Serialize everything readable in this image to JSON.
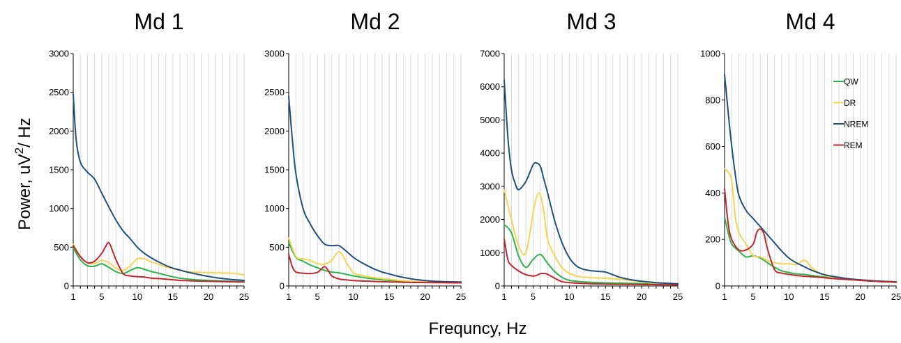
{
  "figure": {
    "ylabel_main": "Power, uV",
    "ylabel_sup": "2",
    "ylabel_tail": "/ Hz",
    "xlabel": "Frequncy, Hz"
  },
  "colors": {
    "QW": "#2db34a",
    "DR": "#f7d354",
    "NREM": "#1f4e80",
    "REM": "#c0262d"
  },
  "chart_data": [
    {
      "type": "line",
      "title": "Md 1",
      "xlim": [
        1,
        25
      ],
      "ylim": [
        0,
        3000
      ],
      "xticks": [
        1,
        5,
        10,
        15,
        20,
        25
      ],
      "yticks": [
        0,
        500,
        1000,
        1500,
        2000,
        2500,
        3000
      ],
      "grid": "vertical",
      "legend": "none",
      "series": [
        {
          "name": "QW",
          "x": [
            1,
            2,
            3,
            4,
            5,
            6,
            7,
            8,
            9,
            10,
            11,
            12,
            13,
            14,
            15,
            16,
            17,
            18,
            19,
            20,
            21,
            22,
            23,
            24,
            25
          ],
          "y": [
            490,
            340,
            260,
            255,
            285,
            240,
            185,
            160,
            200,
            235,
            215,
            185,
            165,
            140,
            118,
            100,
            90,
            82,
            76,
            72,
            68,
            64,
            61,
            58,
            55
          ]
        },
        {
          "name": "DR",
          "x": [
            1,
            2,
            3,
            4,
            5,
            6,
            7,
            8,
            9,
            10,
            11,
            12,
            13,
            14,
            15,
            16,
            17,
            18,
            19,
            20,
            21,
            22,
            23,
            24,
            25
          ],
          "y": [
            540,
            380,
            300,
            290,
            330,
            300,
            230,
            200,
            260,
            350,
            350,
            310,
            280,
            245,
            225,
            200,
            185,
            180,
            175,
            172,
            170,
            168,
            165,
            160,
            140
          ]
        },
        {
          "name": "NREM",
          "x": [
            1,
            1.4,
            2,
            3,
            4,
            5,
            6,
            7,
            8,
            9,
            10,
            11,
            12,
            13,
            14,
            15,
            16,
            17,
            18,
            19,
            20,
            21,
            22,
            23,
            24,
            25
          ],
          "y": [
            2480,
            1900,
            1600,
            1470,
            1380,
            1200,
            1020,
            850,
            710,
            610,
            500,
            420,
            360,
            310,
            265,
            230,
            205,
            180,
            160,
            140,
            123,
            108,
            95,
            85,
            78,
            72
          ]
        },
        {
          "name": "REM",
          "x": [
            1,
            2,
            3,
            4,
            5,
            5.5,
            6,
            6.5,
            7,
            8,
            9,
            10,
            11,
            12,
            13,
            14,
            15,
            16,
            17,
            18,
            19,
            20,
            21,
            22,
            23,
            24,
            25
          ],
          "y": [
            520,
            380,
            300,
            320,
            420,
            500,
            560,
            460,
            340,
            160,
            130,
            120,
            115,
            100,
            95,
            88,
            80,
            72,
            68,
            65,
            62,
            60,
            58,
            56,
            54,
            52,
            50
          ]
        }
      ]
    },
    {
      "type": "line",
      "title": "Md 2",
      "xlim": [
        1,
        25
      ],
      "ylim": [
        0,
        3000
      ],
      "xticks": [
        1,
        5,
        10,
        15,
        20,
        25
      ],
      "yticks": [
        0,
        500,
        1000,
        1500,
        2000,
        2500,
        3000
      ],
      "grid": "vertical",
      "legend": "none",
      "series": [
        {
          "name": "QW",
          "x": [
            1,
            2,
            3,
            4,
            5,
            6,
            7,
            8,
            9,
            10,
            11,
            12,
            13,
            14,
            15,
            16,
            17,
            18,
            19,
            20,
            21,
            22,
            23,
            24,
            25
          ],
          "y": [
            560,
            370,
            320,
            270,
            235,
            200,
            180,
            170,
            150,
            130,
            115,
            100,
            90,
            80,
            72,
            66,
            60,
            56,
            53,
            50,
            48,
            46,
            45,
            44,
            43
          ]
        },
        {
          "name": "DR",
          "x": [
            1,
            2,
            3,
            4,
            5,
            6,
            7,
            7.5,
            8,
            8.5,
            9,
            10,
            11,
            12,
            13,
            14,
            15,
            16,
            17,
            18,
            19,
            20,
            21,
            22,
            23,
            24,
            25
          ],
          "y": [
            620,
            380,
            350,
            330,
            290,
            280,
            330,
            400,
            440,
            400,
            310,
            170,
            140,
            120,
            105,
            95,
            85,
            75,
            68,
            62,
            58,
            55,
            52,
            50,
            50,
            50,
            50
          ]
        },
        {
          "name": "NREM",
          "x": [
            1,
            1.5,
            2,
            3,
            4,
            5,
            6,
            7,
            8,
            9,
            10,
            11,
            12,
            13,
            14,
            15,
            16,
            17,
            18,
            19,
            20,
            21,
            22,
            23,
            24,
            25
          ],
          "y": [
            2450,
            1900,
            1450,
            1000,
            800,
            650,
            540,
            520,
            520,
            450,
            370,
            310,
            260,
            215,
            180,
            155,
            130,
            110,
            93,
            80,
            70,
            62,
            58,
            55,
            53,
            52
          ]
        },
        {
          "name": "REM",
          "x": [
            1,
            1.5,
            2,
            3,
            4,
            5,
            5.5,
            6,
            6.5,
            7,
            8,
            9,
            10,
            11,
            12,
            13,
            14,
            15,
            16,
            17,
            18,
            19,
            20,
            21,
            22,
            23,
            24,
            25
          ],
          "y": [
            410,
            250,
            180,
            165,
            160,
            175,
            215,
            250,
            200,
            130,
            90,
            78,
            70,
            65,
            62,
            58,
            55,
            52,
            50,
            48,
            46,
            45,
            44,
            43,
            42,
            41,
            40,
            40
          ]
        }
      ]
    },
    {
      "type": "line",
      "title": "Md 3",
      "xlim": [
        1,
        25
      ],
      "ylim": [
        0,
        7000
      ],
      "xticks": [
        1,
        5,
        10,
        15,
        20,
        25
      ],
      "yticks": [
        0,
        1000,
        2000,
        3000,
        4000,
        5000,
        6000,
        7000
      ],
      "grid": "vertical",
      "legend": "none",
      "series": [
        {
          "name": "QW",
          "x": [
            1,
            2,
            3,
            4,
            5,
            6,
            7,
            8,
            9,
            10,
            11,
            12,
            13,
            14,
            15,
            16,
            17,
            18,
            19,
            20,
            21,
            22,
            23,
            24,
            25
          ],
          "y": [
            1850,
            1600,
            900,
            560,
            800,
            950,
            680,
            430,
            260,
            170,
            140,
            120,
            110,
            100,
            95,
            90,
            85,
            80,
            75,
            70,
            65,
            60,
            55,
            50,
            45
          ]
        },
        {
          "name": "DR",
          "x": [
            1,
            2,
            3,
            4,
            5,
            5.5,
            6,
            6.5,
            7,
            8,
            9,
            10,
            11,
            12,
            13,
            14,
            15,
            16,
            17,
            18,
            19,
            20,
            21,
            22,
            23,
            24,
            25
          ],
          "y": [
            2900,
            2000,
            1200,
            1000,
            2200,
            2700,
            2750,
            2200,
            1400,
            900,
            550,
            380,
            300,
            270,
            250,
            240,
            230,
            220,
            200,
            180,
            150,
            120,
            100,
            90,
            80,
            70,
            60
          ]
        },
        {
          "name": "NREM",
          "x": [
            1,
            1.5,
            2,
            2.5,
            3,
            4,
            5,
            5.5,
            6,
            6.5,
            7,
            8,
            9,
            10,
            11,
            12,
            13,
            14,
            15,
            16,
            17,
            18,
            19,
            20,
            21,
            22,
            23,
            24,
            25
          ],
          "y": [
            6200,
            4500,
            3500,
            3100,
            2900,
            3150,
            3650,
            3700,
            3600,
            3200,
            2800,
            1950,
            1300,
            850,
            600,
            500,
            460,
            440,
            420,
            340,
            260,
            210,
            170,
            140,
            120,
            100,
            85,
            75,
            65
          ]
        },
        {
          "name": "REM",
          "x": [
            1,
            1.5,
            2,
            3,
            4,
            5,
            5.5,
            6,
            6.5,
            7,
            8,
            9,
            10,
            11,
            12,
            13,
            14,
            15,
            16,
            17,
            18,
            19,
            20,
            21,
            22,
            23,
            24,
            25
          ],
          "y": [
            1420,
            800,
            620,
            450,
            340,
            300,
            320,
            370,
            380,
            350,
            230,
            130,
            100,
            85,
            75,
            65,
            60,
            55,
            52,
            50,
            48,
            46,
            44,
            42,
            40,
            38,
            35,
            32
          ]
        }
      ]
    },
    {
      "type": "line",
      "title": "Md 4",
      "xlim": [
        1,
        25
      ],
      "ylim": [
        0,
        1000
      ],
      "xticks": [
        1,
        5,
        10,
        15,
        20,
        25
      ],
      "yticks": [
        0,
        200,
        400,
        600,
        800,
        1000
      ],
      "grid": "vertical",
      "legend": "top-right",
      "series": [
        {
          "name": "QW",
          "x": [
            1,
            1.5,
            2,
            3,
            4,
            5,
            6,
            7,
            8,
            9,
            10,
            11,
            12,
            13,
            14,
            15,
            16,
            17,
            18,
            19,
            20,
            21,
            22,
            23,
            24,
            25
          ],
          "y": [
            295,
            230,
            180,
            150,
            125,
            130,
            120,
            100,
            80,
            65,
            58,
            52,
            50,
            46,
            42,
            38,
            35,
            32,
            30,
            28,
            26,
            24,
            22,
            20,
            19,
            18
          ]
        },
        {
          "name": "DR",
          "x": [
            1,
            1.5,
            2,
            2.5,
            3,
            4,
            5,
            6,
            7,
            8,
            9,
            10,
            11,
            11.5,
            12,
            12.5,
            13,
            14,
            15,
            16,
            17,
            18,
            19,
            20,
            21,
            22,
            23,
            24,
            25
          ],
          "y": [
            505,
            490,
            450,
            300,
            230,
            180,
            130,
            125,
            110,
            100,
            95,
            95,
            92,
            100,
            110,
            105,
            85,
            60,
            45,
            38,
            33,
            30,
            27,
            25,
            23,
            21,
            20,
            19,
            18
          ]
        },
        {
          "name": "NREM",
          "x": [
            1,
            1.5,
            2,
            2.5,
            3,
            4,
            5,
            6,
            7,
            8,
            9,
            10,
            11,
            12,
            13,
            14,
            15,
            16,
            17,
            18,
            19,
            20,
            21,
            22,
            23,
            24,
            25
          ],
          "y": [
            910,
            750,
            600,
            480,
            390,
            325,
            290,
            255,
            220,
            185,
            150,
            120,
            100,
            85,
            70,
            58,
            48,
            42,
            37,
            32,
            29,
            26,
            24,
            22,
            20,
            19,
            18
          ]
        },
        {
          "name": "REM",
          "x": [
            1,
            1.5,
            2,
            3,
            4,
            5,
            5.5,
            6,
            6.5,
            7,
            8,
            9,
            10,
            11,
            12,
            13,
            14,
            15,
            16,
            17,
            18,
            19,
            20,
            21,
            22,
            23,
            24,
            25
          ],
          "y": [
            420,
            270,
            200,
            155,
            155,
            180,
            230,
            245,
            225,
            160,
            70,
            55,
            50,
            45,
            42,
            40,
            38,
            35,
            32,
            30,
            28,
            26,
            24,
            22,
            20,
            18,
            17,
            16
          ]
        }
      ]
    }
  ]
}
